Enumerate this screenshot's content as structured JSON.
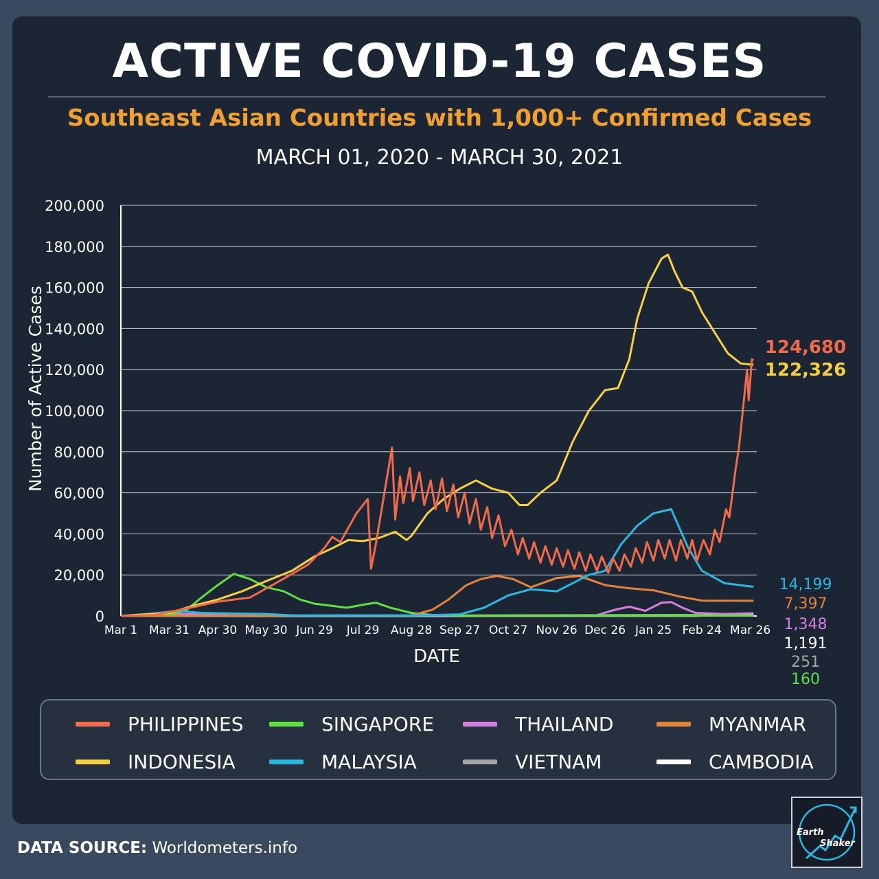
{
  "header": {
    "title": "ACTIVE COVID-19 CASES",
    "subtitle": "Southeast Asian Countries with 1,000+ Confirmed Cases",
    "date_range": "MARCH 01, 2020 - MARCH 30, 2021"
  },
  "chart_data": {
    "type": "line",
    "xlabel": "DATE",
    "ylabel": "Number of Active Cases",
    "ylim": [
      0,
      200000
    ],
    "yticks": [
      0,
      20000,
      40000,
      60000,
      80000,
      100000,
      120000,
      140000,
      160000,
      180000,
      200000
    ],
    "ytick_labels": [
      "0",
      "20,000",
      "40,000",
      "60,000",
      "80,000",
      "100,000",
      "120,000",
      "140,000",
      "160,000",
      "180,000",
      "200,000"
    ],
    "xlim": [
      "2020-03-01",
      "2021-03-30"
    ],
    "xticks": [
      {
        "date": "2020-03-01",
        "label": "Mar 1"
      },
      {
        "date": "2020-03-31",
        "label": "Mar 31"
      },
      {
        "date": "2020-04-30",
        "label": "Apr 30"
      },
      {
        "date": "2020-05-30",
        "label": "May 30"
      },
      {
        "date": "2020-06-29",
        "label": "Jun 29"
      },
      {
        "date": "2020-07-29",
        "label": "Jul 29"
      },
      {
        "date": "2020-08-28",
        "label": "Aug 28"
      },
      {
        "date": "2020-09-27",
        "label": "Sep 27"
      },
      {
        "date": "2020-10-27",
        "label": "Oct 27"
      },
      {
        "date": "2020-11-26",
        "label": "Nov 26"
      },
      {
        "date": "2020-12-26",
        "label": "Dec 26"
      },
      {
        "date": "2021-01-25",
        "label": "Jan 25"
      },
      {
        "date": "2021-02-24",
        "label": "Feb 24"
      },
      {
        "date": "2021-03-26",
        "label": "Mar 26"
      }
    ],
    "grid": "horizontal",
    "legend_position": "bottom",
    "series": [
      {
        "name": "PHILIPPINES",
        "color": "#ef6b4a",
        "end_label": "124,680",
        "points": [
          [
            "2020-03-01",
            0
          ],
          [
            "2020-03-21",
            400
          ],
          [
            "2020-04-10",
            3500
          ],
          [
            "2020-04-30",
            7000
          ],
          [
            "2020-05-20",
            9000
          ],
          [
            "2020-06-05",
            16000
          ],
          [
            "2020-06-25",
            25000
          ],
          [
            "2020-07-05",
            33000
          ],
          [
            "2020-07-10",
            38500
          ],
          [
            "2020-07-15",
            36000
          ],
          [
            "2020-07-25",
            50000
          ],
          [
            "2020-08-01",
            57000
          ],
          [
            "2020-08-03",
            23000
          ],
          [
            "2020-08-06",
            35000
          ],
          [
            "2020-08-16",
            82000
          ],
          [
            "2020-08-18",
            47000
          ],
          [
            "2020-08-21",
            68000
          ],
          [
            "2020-08-23",
            55000
          ],
          [
            "2020-08-27",
            72000
          ],
          [
            "2020-08-29",
            56000
          ],
          [
            "2020-09-02",
            70000
          ],
          [
            "2020-09-05",
            54000
          ],
          [
            "2020-09-09",
            66000
          ],
          [
            "2020-09-12",
            52000
          ],
          [
            "2020-09-16",
            67000
          ],
          [
            "2020-09-19",
            51000
          ],
          [
            "2020-09-23",
            64000
          ],
          [
            "2020-09-26",
            48000
          ],
          [
            "2020-09-30",
            60000
          ],
          [
            "2020-10-03",
            45000
          ],
          [
            "2020-10-07",
            57000
          ],
          [
            "2020-10-10",
            42000
          ],
          [
            "2020-10-14",
            53000
          ],
          [
            "2020-10-17",
            38000
          ],
          [
            "2020-10-21",
            49000
          ],
          [
            "2020-10-25",
            34000
          ],
          [
            "2020-10-29",
            42000
          ],
          [
            "2020-11-02",
            30000
          ],
          [
            "2020-11-05",
            38000
          ],
          [
            "2020-11-09",
            28000
          ],
          [
            "2020-11-12",
            36000
          ],
          [
            "2020-11-16",
            26000
          ],
          [
            "2020-11-19",
            34000
          ],
          [
            "2020-11-23",
            25000
          ],
          [
            "2020-11-26",
            33000
          ],
          [
            "2020-11-30",
            24000
          ],
          [
            "2020-12-03",
            32000
          ],
          [
            "2020-12-07",
            23000
          ],
          [
            "2020-12-10",
            31000
          ],
          [
            "2020-12-14",
            22000
          ],
          [
            "2020-12-17",
            30000
          ],
          [
            "2020-12-21",
            22000
          ],
          [
            "2020-12-24",
            29000
          ],
          [
            "2020-12-28",
            21000
          ],
          [
            "2020-12-31",
            28000
          ],
          [
            "2021-01-04",
            22000
          ],
          [
            "2021-01-07",
            30000
          ],
          [
            "2021-01-11",
            24000
          ],
          [
            "2021-01-14",
            33000
          ],
          [
            "2021-01-18",
            26000
          ],
          [
            "2021-01-21",
            36000
          ],
          [
            "2021-01-25",
            27000
          ],
          [
            "2021-01-28",
            37000
          ],
          [
            "2021-02-01",
            28000
          ],
          [
            "2021-02-04",
            37000
          ],
          [
            "2021-02-08",
            27000
          ],
          [
            "2021-02-11",
            37000
          ],
          [
            "2021-02-15",
            28000
          ],
          [
            "2021-02-18",
            37000
          ],
          [
            "2021-02-21",
            27000
          ],
          [
            "2021-02-25",
            37000
          ],
          [
            "2021-03-01",
            30000
          ],
          [
            "2021-03-04",
            42000
          ],
          [
            "2021-03-07",
            36000
          ],
          [
            "2021-03-11",
            52000
          ],
          [
            "2021-03-13",
            48000
          ],
          [
            "2021-03-17",
            72000
          ],
          [
            "2021-03-19",
            82000
          ],
          [
            "2021-03-22",
            105000
          ],
          [
            "2021-03-24",
            120000
          ],
          [
            "2021-03-25",
            105000
          ],
          [
            "2021-03-27",
            125000
          ],
          [
            "2021-03-28",
            124680
          ]
        ]
      },
      {
        "name": "INDONESIA",
        "color": "#f5d142",
        "end_label": "122,326",
        "points": [
          [
            "2020-03-01",
            0
          ],
          [
            "2020-03-31",
            1500
          ],
          [
            "2020-04-15",
            5000
          ],
          [
            "2020-04-30",
            8000
          ],
          [
            "2020-05-15",
            12000
          ],
          [
            "2020-05-30",
            17000
          ],
          [
            "2020-06-15",
            22000
          ],
          [
            "2020-06-29",
            29000
          ],
          [
            "2020-07-10",
            33000
          ],
          [
            "2020-07-20",
            37000
          ],
          [
            "2020-07-29",
            36500
          ],
          [
            "2020-08-08",
            38000
          ],
          [
            "2020-08-18",
            41000
          ],
          [
            "2020-08-25",
            37000
          ],
          [
            "2020-08-28",
            39000
          ],
          [
            "2020-09-07",
            50000
          ],
          [
            "2020-09-17",
            57000
          ],
          [
            "2020-09-27",
            62000
          ],
          [
            "2020-10-07",
            66000
          ],
          [
            "2020-10-17",
            62000
          ],
          [
            "2020-10-27",
            60000
          ],
          [
            "2020-11-03",
            54000
          ],
          [
            "2020-11-08",
            54000
          ],
          [
            "2020-11-16",
            60000
          ],
          [
            "2020-11-26",
            66000
          ],
          [
            "2020-12-06",
            85000
          ],
          [
            "2020-12-16",
            100000
          ],
          [
            "2020-12-26",
            110000
          ],
          [
            "2021-01-03",
            111000
          ],
          [
            "2021-01-10",
            125000
          ],
          [
            "2021-01-15",
            145000
          ],
          [
            "2021-01-22",
            162000
          ],
          [
            "2021-01-30",
            174000
          ],
          [
            "2021-02-03",
            176000
          ],
          [
            "2021-02-07",
            168000
          ],
          [
            "2021-02-12",
            160000
          ],
          [
            "2021-02-18",
            158000
          ],
          [
            "2021-02-24",
            148000
          ],
          [
            "2021-03-04",
            138000
          ],
          [
            "2021-03-12",
            128000
          ],
          [
            "2021-03-20",
            123000
          ],
          [
            "2021-03-28",
            122326
          ]
        ]
      },
      {
        "name": "SINGAPORE",
        "color": "#62e042",
        "end_label": "160",
        "points": [
          [
            "2020-03-01",
            50
          ],
          [
            "2020-03-31",
            700
          ],
          [
            "2020-04-10",
            2500
          ],
          [
            "2020-04-20",
            9000
          ],
          [
            "2020-04-30",
            15000
          ],
          [
            "2020-05-10",
            20500
          ],
          [
            "2020-05-20",
            18000
          ],
          [
            "2020-05-30",
            14000
          ],
          [
            "2020-06-10",
            12000
          ],
          [
            "2020-06-20",
            8000
          ],
          [
            "2020-06-29",
            6000
          ],
          [
            "2020-07-09",
            5000
          ],
          [
            "2020-07-19",
            4000
          ],
          [
            "2020-07-29",
            5500
          ],
          [
            "2020-08-06",
            6500
          ],
          [
            "2020-08-15",
            4000
          ],
          [
            "2020-08-28",
            1500
          ],
          [
            "2020-09-10",
            500
          ],
          [
            "2020-10-01",
            150
          ],
          [
            "2021-03-28",
            160
          ]
        ]
      },
      {
        "name": "MALAYSIA",
        "color": "#2ab8e0",
        "end_label": "14,199",
        "points": [
          [
            "2020-03-01",
            0
          ],
          [
            "2020-03-21",
            1200
          ],
          [
            "2020-04-05",
            2500
          ],
          [
            "2020-04-20",
            1500
          ],
          [
            "2020-05-10",
            1200
          ],
          [
            "2020-05-30",
            1000
          ],
          [
            "2020-06-15",
            300
          ],
          [
            "2020-07-10",
            200
          ],
          [
            "2020-08-28",
            200
          ],
          [
            "2020-09-27",
            800
          ],
          [
            "2020-10-12",
            4000
          ],
          [
            "2020-10-27",
            10000
          ],
          [
            "2020-11-10",
            13000
          ],
          [
            "2020-11-26",
            12000
          ],
          [
            "2020-12-06",
            16000
          ],
          [
            "2020-12-16",
            20000
          ],
          [
            "2020-12-26",
            22000
          ],
          [
            "2021-01-05",
            35000
          ],
          [
            "2021-01-15",
            44000
          ],
          [
            "2021-01-25",
            50000
          ],
          [
            "2021-02-05",
            52000
          ],
          [
            "2021-02-15",
            34000
          ],
          [
            "2021-02-24",
            22000
          ],
          [
            "2021-03-10",
            16000
          ],
          [
            "2021-03-28",
            14199
          ]
        ]
      },
      {
        "name": "MYANMAR",
        "color": "#e2843c",
        "end_label": "7,397",
        "points": [
          [
            "2020-03-01",
            0
          ],
          [
            "2020-08-28",
            300
          ],
          [
            "2020-09-10",
            3000
          ],
          [
            "2020-09-20",
            8000
          ],
          [
            "2020-10-01",
            15000
          ],
          [
            "2020-10-10",
            18000
          ],
          [
            "2020-10-20",
            19500
          ],
          [
            "2020-10-30",
            18000
          ],
          [
            "2020-11-10",
            14000
          ],
          [
            "2020-11-26",
            18500
          ],
          [
            "2020-12-10",
            19500
          ],
          [
            "2020-12-26",
            15000
          ],
          [
            "2021-01-10",
            13500
          ],
          [
            "2021-01-25",
            12500
          ],
          [
            "2021-02-10",
            9500
          ],
          [
            "2021-02-24",
            7500
          ],
          [
            "2021-03-28",
            7397
          ]
        ]
      },
      {
        "name": "THAILAND",
        "color": "#d57fe0",
        "end_label": "1,348",
        "points": [
          [
            "2020-03-01",
            0
          ],
          [
            "2020-03-31",
            1000
          ],
          [
            "2020-04-15",
            900
          ],
          [
            "2020-05-10",
            200
          ],
          [
            "2020-12-20",
            200
          ],
          [
            "2021-01-01",
            3000
          ],
          [
            "2021-01-10",
            4500
          ],
          [
            "2021-01-20",
            2500
          ],
          [
            "2021-01-30",
            6500
          ],
          [
            "2021-02-05",
            6800
          ],
          [
            "2021-02-12",
            4000
          ],
          [
            "2021-02-20",
            1500
          ],
          [
            "2021-03-10",
            1000
          ],
          [
            "2021-03-28",
            1348
          ]
        ]
      },
      {
        "name": "VIETNAM",
        "color": "#a6a6a6",
        "end_label": "251",
        "points": [
          [
            "2020-03-01",
            0
          ],
          [
            "2020-04-01",
            150
          ],
          [
            "2020-05-01",
            100
          ],
          [
            "2020-08-01",
            300
          ],
          [
            "2020-09-01",
            200
          ],
          [
            "2021-02-10",
            500
          ],
          [
            "2021-03-28",
            251
          ]
        ]
      },
      {
        "name": "CAMBODIA",
        "color": "#ffffff",
        "end_label": "1,191",
        "points": [
          [
            "2020-03-01",
            0
          ],
          [
            "2021-02-20",
            50
          ],
          [
            "2021-03-10",
            600
          ],
          [
            "2021-03-28",
            1191
          ]
        ]
      }
    ]
  },
  "legend_order": [
    "PHILIPPINES",
    "SINGAPORE",
    "THAILAND",
    "MYANMAR",
    "INDONESIA",
    "MALAYSIA",
    "VIETNAM",
    "CAMBODIA"
  ],
  "footer": {
    "source_label": "DATA SOURCE:",
    "source_value": "Worldometers.info"
  },
  "logo": {
    "line1": "Earth",
    "line2": "Shaker"
  }
}
